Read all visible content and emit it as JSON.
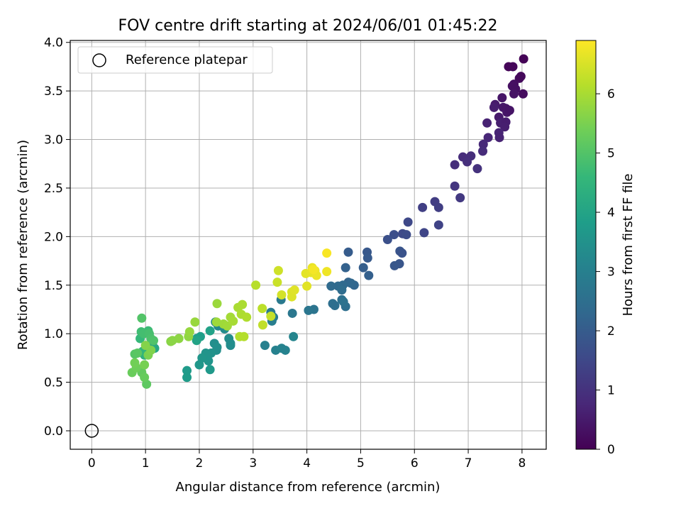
{
  "chart_data": {
    "type": "scatter",
    "title": "FOV centre drift starting at 2024/06/01 01:45:22",
    "xlabel": "Angular distance from reference (arcmin)",
    "ylabel": "Rotation from reference (arcmin)",
    "xlim": [
      -0.4,
      8.45
    ],
    "ylim": [
      -0.19,
      4.02
    ],
    "xticks": [
      0,
      1,
      2,
      3,
      4,
      5,
      6,
      7,
      8
    ],
    "yticks": [
      0.0,
      0.5,
      1.0,
      1.5,
      2.0,
      2.5,
      3.0,
      3.5,
      4.0
    ],
    "xtick_labels": [
      "0",
      "1",
      "2",
      "3",
      "4",
      "5",
      "6",
      "7",
      "8"
    ],
    "ytick_labels": [
      "0.0",
      "0.5",
      "1.0",
      "1.5",
      "2.0",
      "2.5",
      "3.0",
      "3.5",
      "4.0"
    ],
    "grid": true,
    "legend": {
      "placement": "top-left",
      "entries": [
        {
          "label": "Reference platepar",
          "marker": "open-circle"
        }
      ]
    },
    "reference_point": {
      "x": 0,
      "y": 0
    },
    "colorbar": {
      "label": "Hours from first FF file",
      "colormap": "viridis",
      "range": [
        0,
        6.9
      ],
      "ticks": [
        0,
        1,
        2,
        3,
        4,
        5,
        6
      ],
      "tick_labels": [
        "0",
        "1",
        "2",
        "3",
        "4",
        "5",
        "6"
      ]
    },
    "colormap_stops": [
      "#440154",
      "#482878",
      "#3e4989",
      "#31688e",
      "#26828e",
      "#1f9e89",
      "#35b779",
      "#6ece58",
      "#b5de2b",
      "#fde725"
    ],
    "points": [
      [
        8.03,
        3.83,
        0.05
      ],
      [
        7.75,
        3.75,
        0.1
      ],
      [
        7.83,
        3.75,
        0.12
      ],
      [
        7.95,
        3.63,
        0.2
      ],
      [
        7.98,
        3.65,
        0.15
      ],
      [
        7.85,
        3.57,
        0.25
      ],
      [
        7.82,
        3.55,
        0.3
      ],
      [
        7.88,
        3.52,
        0.28
      ],
      [
        8.02,
        3.47,
        0.22
      ],
      [
        7.85,
        3.47,
        0.35
      ],
      [
        7.63,
        3.43,
        0.4
      ],
      [
        7.5,
        3.36,
        0.5
      ],
      [
        7.48,
        3.33,
        0.55
      ],
      [
        7.65,
        3.33,
        0.45
      ],
      [
        7.57,
        3.23,
        0.5
      ],
      [
        7.7,
        3.32,
        0.4
      ],
      [
        7.72,
        3.28,
        0.42
      ],
      [
        7.77,
        3.3,
        0.38
      ],
      [
        7.6,
        3.17,
        0.6
      ],
      [
        7.7,
        3.18,
        0.55
      ],
      [
        7.68,
        3.13,
        0.58
      ],
      [
        7.35,
        3.17,
        0.65
      ],
      [
        7.57,
        3.07,
        0.7
      ],
      [
        7.58,
        3.02,
        0.68
      ],
      [
        7.37,
        3.02,
        0.75
      ],
      [
        7.28,
        2.95,
        0.8
      ],
      [
        7.27,
        2.88,
        0.85
      ],
      [
        7.05,
        2.83,
        0.9
      ],
      [
        6.9,
        2.82,
        0.88
      ],
      [
        6.98,
        2.77,
        0.95
      ],
      [
        6.75,
        2.74,
        0.92
      ],
      [
        7.17,
        2.7,
        1.0
      ],
      [
        6.75,
        2.52,
        1.1
      ],
      [
        6.85,
        2.4,
        1.15
      ],
      [
        6.38,
        2.36,
        1.25
      ],
      [
        6.15,
        2.3,
        1.3
      ],
      [
        6.45,
        2.3,
        1.28
      ],
      [
        6.45,
        2.12,
        1.4
      ],
      [
        5.88,
        2.15,
        1.5
      ],
      [
        6.18,
        2.04,
        1.45
      ],
      [
        5.78,
        2.03,
        1.55
      ],
      [
        5.85,
        2.02,
        1.6
      ],
      [
        5.62,
        2.02,
        1.65
      ],
      [
        5.5,
        1.97,
        1.7
      ],
      [
        5.73,
        1.85,
        1.8
      ],
      [
        5.77,
        1.83,
        1.78
      ],
      [
        5.12,
        1.84,
        1.9
      ],
      [
        5.13,
        1.78,
        1.95
      ],
      [
        5.72,
        1.72,
        1.85
      ],
      [
        5.63,
        1.7,
        1.88
      ],
      [
        4.77,
        1.84,
        2.0
      ],
      [
        5.05,
        1.68,
        2.05
      ],
      [
        5.15,
        1.6,
        2.1
      ],
      [
        4.72,
        1.68,
        2.15
      ],
      [
        4.77,
        1.53,
        2.2
      ],
      [
        4.88,
        1.5,
        2.25
      ],
      [
        4.82,
        1.52,
        2.3
      ],
      [
        4.67,
        1.5,
        2.35
      ],
      [
        4.58,
        1.49,
        2.4
      ],
      [
        4.45,
        1.49,
        2.38
      ],
      [
        4.65,
        1.45,
        2.45
      ],
      [
        4.48,
        1.31,
        2.5
      ],
      [
        4.52,
        1.29,
        2.48
      ],
      [
        4.65,
        1.35,
        2.55
      ],
      [
        4.72,
        1.28,
        2.52
      ],
      [
        4.68,
        1.33,
        2.6
      ],
      [
        4.13,
        1.25,
        2.65
      ],
      [
        4.03,
        1.24,
        2.7
      ],
      [
        3.73,
        1.21,
        2.75
      ],
      [
        3.52,
        1.35,
        2.8
      ],
      [
        3.33,
        1.22,
        2.85
      ],
      [
        3.38,
        1.17,
        2.9
      ],
      [
        3.35,
        1.13,
        2.95
      ],
      [
        3.22,
        0.88,
        3.0
      ],
      [
        3.42,
        0.83,
        3.05
      ],
      [
        3.53,
        0.85,
        3.1
      ],
      [
        3.6,
        0.83,
        3.08
      ],
      [
        3.75,
        0.97,
        3.15
      ],
      [
        2.3,
        1.12,
        3.2
      ],
      [
        2.35,
        1.08,
        3.25
      ],
      [
        2.47,
        1.05,
        3.3
      ],
      [
        2.55,
        0.95,
        3.35
      ],
      [
        2.58,
        0.88,
        3.3
      ],
      [
        2.58,
        0.9,
        3.38
      ],
      [
        2.28,
        0.9,
        3.4
      ],
      [
        2.33,
        0.86,
        3.45
      ],
      [
        2.32,
        0.83,
        3.42
      ],
      [
        2.22,
        0.8,
        3.5
      ],
      [
        2.12,
        0.8,
        3.55
      ],
      [
        2.17,
        0.72,
        3.6
      ],
      [
        2.0,
        0.68,
        3.65
      ],
      [
        2.05,
        0.75,
        3.62
      ],
      [
        2.2,
        0.63,
        3.7
      ],
      [
        1.77,
        0.62,
        3.75
      ],
      [
        1.77,
        0.55,
        3.78
      ],
      [
        2.02,
        0.97,
        3.85
      ],
      [
        1.95,
        0.95,
        3.9
      ],
      [
        2.2,
        1.03,
        3.95
      ],
      [
        1.95,
        0.93,
        4.0
      ],
      [
        1.17,
        0.85,
        4.1
      ],
      [
        1.13,
        0.9,
        4.2
      ],
      [
        1.0,
        0.83,
        4.3
      ],
      [
        0.98,
        0.78,
        4.4
      ],
      [
        0.95,
        0.82,
        4.5
      ],
      [
        0.9,
        0.95,
        4.6
      ],
      [
        1.05,
        1.03,
        4.7
      ],
      [
        0.92,
        1.02,
        4.75
      ],
      [
        0.97,
        1.0,
        4.8
      ],
      [
        1.07,
        1.0,
        4.85
      ],
      [
        1.1,
        0.95,
        4.9
      ],
      [
        1.15,
        0.93,
        4.95
      ],
      [
        0.93,
        1.16,
        5.0
      ],
      [
        0.8,
        0.79,
        5.05
      ],
      [
        0.85,
        0.8,
        5.1
      ],
      [
        1.02,
        0.48,
        5.15
      ],
      [
        0.93,
        0.6,
        5.2
      ],
      [
        0.98,
        0.55,
        5.25
      ],
      [
        0.75,
        0.6,
        5.3
      ],
      [
        0.83,
        0.65,
        5.35
      ],
      [
        0.8,
        0.7,
        5.4
      ],
      [
        0.98,
        0.68,
        5.45
      ],
      [
        1.05,
        0.78,
        5.5
      ],
      [
        1.1,
        0.83,
        5.55
      ],
      [
        1.0,
        0.88,
        5.6
      ],
      [
        1.47,
        0.92,
        5.65
      ],
      [
        1.62,
        0.95,
        5.7
      ],
      [
        1.5,
        0.93,
        5.68
      ],
      [
        1.8,
        0.97,
        5.75
      ],
      [
        1.82,
        1.02,
        5.8
      ],
      [
        1.92,
        1.12,
        5.82
      ],
      [
        2.33,
        1.31,
        5.85
      ],
      [
        2.32,
        1.12,
        5.88
      ],
      [
        2.45,
        1.1,
        5.9
      ],
      [
        2.52,
        1.08,
        5.92
      ],
      [
        2.58,
        1.17,
        5.95
      ],
      [
        2.63,
        1.13,
        5.98
      ],
      [
        2.72,
        1.27,
        6.0
      ],
      [
        2.8,
        1.3,
        6.02
      ],
      [
        2.78,
        1.2,
        6.05
      ],
      [
        2.88,
        1.17,
        6.08
      ],
      [
        2.75,
        0.97,
        6.1
      ],
      [
        2.83,
        0.97,
        6.12
      ],
      [
        3.05,
        1.5,
        6.15
      ],
      [
        3.17,
        1.26,
        6.2
      ],
      [
        3.18,
        1.09,
        6.25
      ],
      [
        3.33,
        1.18,
        6.3
      ],
      [
        3.45,
        1.53,
        6.35
      ],
      [
        3.47,
        1.65,
        6.4
      ],
      [
        3.53,
        1.4,
        6.45
      ],
      [
        3.72,
        1.43,
        6.5
      ],
      [
        3.72,
        1.38,
        6.55
      ],
      [
        3.77,
        1.45,
        6.58
      ],
      [
        4.0,
        1.49,
        6.6
      ],
      [
        3.98,
        1.62,
        6.62
      ],
      [
        4.08,
        1.63,
        6.65
      ],
      [
        4.1,
        1.68,
        6.68
      ],
      [
        4.15,
        1.65,
        6.7
      ],
      [
        4.18,
        1.6,
        6.72
      ],
      [
        4.37,
        1.64,
        6.75
      ],
      [
        4.37,
        1.83,
        6.85
      ],
      [
        4.12,
        1.66,
        6.8
      ]
    ]
  }
}
